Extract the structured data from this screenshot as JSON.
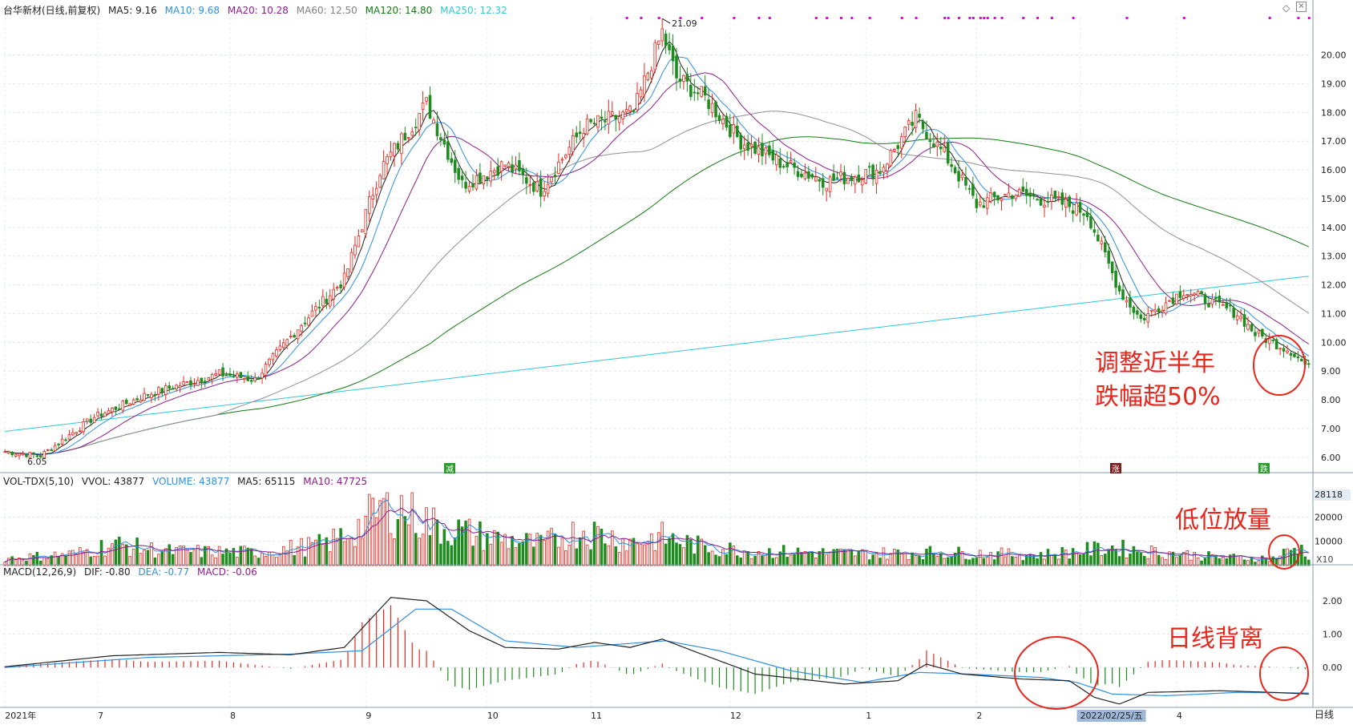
{
  "window": {
    "stock_title": "台华新材(日线,前复权)",
    "corner_icon": "diamond-icon",
    "corner_close": "close-icon",
    "period_label": "日线"
  },
  "legend_price": {
    "ma5": "MA5: 9.16",
    "ma10": "MA10: 9.68",
    "ma20": "MA20: 10.28",
    "ma60": "MA60: 12.50",
    "ma120": "MA120: 14.80",
    "ma250": "MA250: 12.32"
  },
  "legend_volume": {
    "title": "VOL-TDX(5,10)",
    "vvol": "VVOL: 43877",
    "volume": "VOLUME: 43877",
    "ma5": "MA5: 65115",
    "ma10": "MA10: 47725"
  },
  "legend_macd": {
    "title": "MACD(12,26,9)",
    "dif": "DIF: -0.80",
    "dea": "DEA: -0.77",
    "macd": "MACD: -0.06"
  },
  "colors": {
    "up": "#e8261c",
    "down": "#1e8c1e",
    "ma5": "#222222",
    "ma10": "#2f8fe0",
    "ma20": "#8b1c8b",
    "ma60": "#909090",
    "ma120": "#137a13",
    "ma250": "#33c6d6",
    "signal_dots": "#e600e6",
    "annotation": "#e8261c"
  },
  "annotations": {
    "price_note_line1": "调整近半年",
    "price_note_line2": "跌幅超50%",
    "volume_note": "低位放量",
    "macd_note": "日线背离"
  },
  "markers": {
    "high_label": "21.09",
    "low_label": "6.05",
    "tag_1": "减",
    "tag_2": "涨",
    "tag_3": "跌"
  },
  "chart_data": {
    "type": "candlestick",
    "price_axis": {
      "ticks": [
        "20.00",
        "19.00",
        "18.00",
        "17.00",
        "16.00",
        "15.00",
        "14.00",
        "13.00",
        "12.00",
        "11.00",
        "10.00",
        "9.00",
        "8.00",
        "7.00",
        "6.00"
      ],
      "range": [
        5.8,
        21.3
      ]
    },
    "volume_axis": {
      "ticks": [
        "28118",
        "20000",
        "10000"
      ],
      "unit_label": "X10",
      "range": [
        0,
        30000
      ]
    },
    "macd_axis": {
      "ticks": [
        "2.00",
        "1.00",
        "0.00"
      ],
      "range": [
        -1.2,
        2.6
      ]
    },
    "x_axis": {
      "labels": [
        "2021年",
        "7",
        "8",
        "9",
        "10",
        "11",
        "12",
        "1",
        "2",
        "2022/02/25/五",
        "4"
      ],
      "label_day_index": [
        0,
        26,
        63,
        101,
        135,
        164,
        203,
        241,
        272,
        301,
        328
      ]
    },
    "price_keypoints": [
      [
        0,
        6.2
      ],
      [
        10,
        6.05
      ],
      [
        25,
        7.4
      ],
      [
        40,
        8.2
      ],
      [
        60,
        8.9
      ],
      [
        70,
        8.7
      ],
      [
        82,
        10.5
      ],
      [
        95,
        12.2
      ],
      [
        105,
        16.0
      ],
      [
        118,
        18.3
      ],
      [
        128,
        15.5
      ],
      [
        140,
        16.2
      ],
      [
        150,
        15.3
      ],
      [
        162,
        17.5
      ],
      [
        176,
        18.0
      ],
      [
        184,
        20.8
      ],
      [
        188,
        19.2
      ],
      [
        196,
        18.5
      ],
      [
        206,
        17.0
      ],
      [
        218,
        16.2
      ],
      [
        230,
        15.6
      ],
      [
        245,
        16.0
      ],
      [
        255,
        17.8
      ],
      [
        265,
        16.2
      ],
      [
        272,
        14.8
      ],
      [
        282,
        15.2
      ],
      [
        297,
        14.8
      ],
      [
        303,
        14.5
      ],
      [
        312,
        11.8
      ],
      [
        318,
        10.8
      ],
      [
        330,
        11.8
      ],
      [
        345,
        11.0
      ],
      [
        350,
        10.3
      ],
      [
        360,
        9.7
      ],
      [
        365,
        9.1
      ]
    ],
    "moving_average_endpoints": {
      "MA5": 9.16,
      "MA10": 9.68,
      "MA20": 10.28,
      "MA60": 12.5,
      "MA120": 14.8,
      "MA250": 12.32
    },
    "volume_last": 43877,
    "volume_ma5_last": 65115,
    "volume_ma10_last": 47725,
    "volume_keypoints": [
      [
        0,
        3000
      ],
      [
        20,
        5000
      ],
      [
        30,
        9000
      ],
      [
        45,
        6000
      ],
      [
        70,
        5500
      ],
      [
        90,
        9000
      ],
      [
        100,
        17000
      ],
      [
        106,
        25000
      ],
      [
        112,
        24000
      ],
      [
        120,
        17000
      ],
      [
        135,
        12000
      ],
      [
        150,
        9000
      ],
      [
        162,
        15000
      ],
      [
        175,
        10000
      ],
      [
        184,
        12000
      ],
      [
        195,
        8000
      ],
      [
        210,
        6000
      ],
      [
        240,
        5000
      ],
      [
        260,
        5500
      ],
      [
        290,
        4500
      ],
      [
        310,
        7500
      ],
      [
        320,
        6000
      ],
      [
        340,
        3500
      ],
      [
        355,
        3000
      ],
      [
        362,
        8000
      ],
      [
        365,
        4400
      ]
    ],
    "macd_dif_keypoints": [
      [
        0,
        0.02
      ],
      [
        30,
        0.35
      ],
      [
        60,
        0.45
      ],
      [
        80,
        0.38
      ],
      [
        95,
        0.6
      ],
      [
        108,
        2.1
      ],
      [
        118,
        2.0
      ],
      [
        130,
        1.1
      ],
      [
        140,
        0.6
      ],
      [
        155,
        0.55
      ],
      [
        165,
        0.75
      ],
      [
        175,
        0.6
      ],
      [
        184,
        0.85
      ],
      [
        195,
        0.4
      ],
      [
        210,
        -0.2
      ],
      [
        235,
        -0.5
      ],
      [
        250,
        -0.4
      ],
      [
        258,
        0.1
      ],
      [
        268,
        -0.2
      ],
      [
        285,
        -0.35
      ],
      [
        298,
        -0.4
      ],
      [
        305,
        -0.9
      ],
      [
        312,
        -1.1
      ],
      [
        320,
        -0.75
      ],
      [
        340,
        -0.7
      ],
      [
        355,
        -0.75
      ],
      [
        365,
        -0.8
      ]
    ],
    "macd_dea_keypoints": [
      [
        0,
        0.0
      ],
      [
        40,
        0.3
      ],
      [
        80,
        0.4
      ],
      [
        100,
        0.5
      ],
      [
        115,
        1.75
      ],
      [
        125,
        1.75
      ],
      [
        140,
        0.8
      ],
      [
        160,
        0.6
      ],
      [
        185,
        0.8
      ],
      [
        200,
        0.5
      ],
      [
        220,
        -0.1
      ],
      [
        240,
        -0.45
      ],
      [
        256,
        -0.15
      ],
      [
        270,
        -0.2
      ],
      [
        290,
        -0.3
      ],
      [
        300,
        -0.45
      ],
      [
        310,
        -0.8
      ],
      [
        325,
        -0.85
      ],
      [
        345,
        -0.75
      ],
      [
        365,
        -0.77
      ]
    ],
    "macd_last": -0.06
  }
}
